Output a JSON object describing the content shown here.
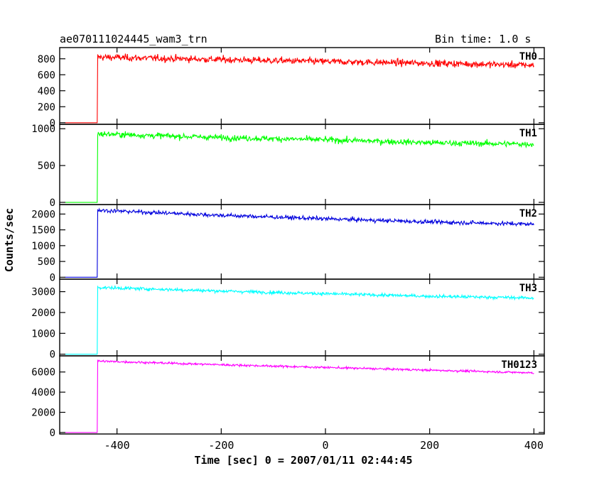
{
  "header": {
    "title": "ae070111024445_wam3_trn",
    "bin_time": "Bin time: 1.0 s"
  },
  "chart_data": {
    "type": "line",
    "title": "ae070111024445_wam3_trn",
    "subtitle": "Bin time: 1.0 s",
    "xlabel": "Time [sec] 0 = 2007/01/11 02:44:45",
    "ylabel": "Counts/sec",
    "xlim": [
      -510,
      420
    ],
    "x_ticks": [
      "-400",
      "-200",
      "0",
      "200",
      "400"
    ],
    "x_tick_values": [
      -400,
      -200,
      0,
      200,
      400
    ],
    "x_start": -500,
    "x_end": 400,
    "x_step": 1,
    "onset": -437,
    "grid": false,
    "panels": [
      {
        "name": "TH0",
        "color": "#ff0000",
        "ylim": [
          -20,
          940
        ],
        "y_ticks": [
          0,
          200,
          400,
          600,
          800
        ],
        "y_tick_labels": [
          "0",
          "200",
          "400",
          "600",
          "800"
        ],
        "pre_level": 0,
        "key_points": [
          [
            -436,
            820
          ],
          [
            -200,
            790
          ],
          [
            0,
            765
          ],
          [
            200,
            745
          ],
          [
            400,
            720
          ]
        ],
        "noise": 30
      },
      {
        "name": "TH1",
        "color": "#00ff00",
        "ylim": [
          -30,
          1060
        ],
        "y_ticks": [
          0,
          500,
          1000
        ],
        "y_tick_labels": [
          "0",
          "500",
          "1000"
        ],
        "pre_level": 0,
        "key_points": [
          [
            -436,
            930
          ],
          [
            -200,
            880
          ],
          [
            0,
            850
          ],
          [
            200,
            810
          ],
          [
            400,
            790
          ]
        ],
        "noise": 28
      },
      {
        "name": "TH2",
        "color": "#0000dd",
        "ylim": [
          -60,
          2300
        ],
        "y_ticks": [
          0,
          500,
          1000,
          1500,
          2000
        ],
        "y_tick_labels": [
          "0",
          "500",
          "1000",
          "1500",
          "2000"
        ],
        "pre_level": 0,
        "key_points": [
          [
            -436,
            2120
          ],
          [
            -200,
            1960
          ],
          [
            0,
            1850
          ],
          [
            200,
            1750
          ],
          [
            400,
            1680
          ]
        ],
        "noise": 45
      },
      {
        "name": "TH3",
        "color": "#00ffff",
        "ylim": [
          -80,
          3600
        ],
        "y_ticks": [
          0,
          1000,
          2000,
          3000
        ],
        "y_tick_labels": [
          "0",
          "1000",
          "2000",
          "3000"
        ],
        "pre_level": 0,
        "key_points": [
          [
            -436,
            3200
          ],
          [
            -200,
            3030
          ],
          [
            0,
            2900
          ],
          [
            200,
            2780
          ],
          [
            400,
            2700
          ]
        ],
        "noise": 55
      },
      {
        "name": "TH0123",
        "color": "#ff00ff",
        "ylim": [
          -150,
          7600
        ],
        "y_ticks": [
          0,
          2000,
          4000,
          6000
        ],
        "y_tick_labels": [
          "0",
          "2000",
          "4000",
          "6000"
        ],
        "pre_level": 0,
        "key_points": [
          [
            -436,
            7080
          ],
          [
            -200,
            6720
          ],
          [
            0,
            6450
          ],
          [
            200,
            6180
          ],
          [
            400,
            5920
          ]
        ],
        "noise": 75
      }
    ]
  }
}
